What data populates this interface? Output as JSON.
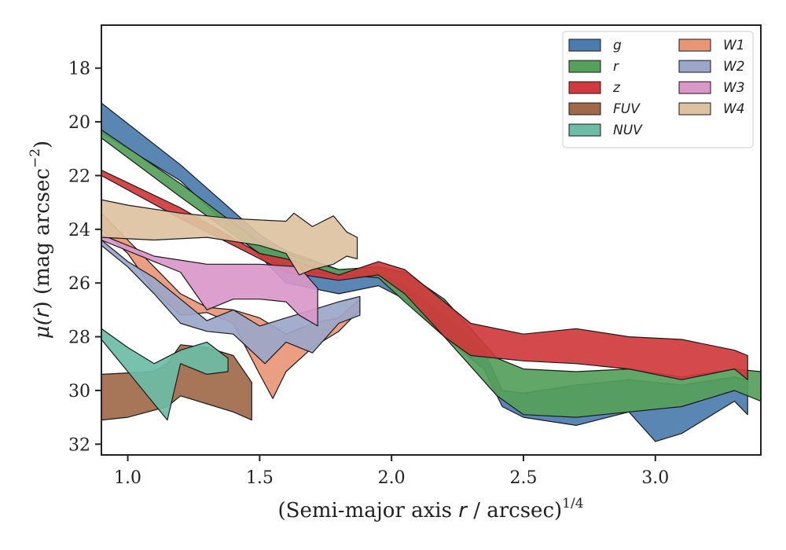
{
  "chart_data": {
    "type": "area",
    "xlabel": "(Semi-major axis r / arcsec)^1/4",
    "xlabel_parts": {
      "pre": "(Semi-major axis ",
      "var": "r",
      "post": " / arcsec)",
      "sup": "1/4"
    },
    "ylabel": "μ(r) (mag arcsec^-2)",
    "ylabel_parts": {
      "pre": "μ(",
      "var": "r",
      "mid": ") (mag arcsec",
      "sup": "−2",
      "post": ")"
    },
    "xlim": [
      0.9,
      3.4
    ],
    "ylim": [
      32.4,
      16.4
    ],
    "y_inverted": true,
    "xticks": [
      1.0,
      1.5,
      2.0,
      2.5,
      3.0
    ],
    "xtick_labels": [
      "1.0",
      "1.5",
      "2.0",
      "2.5",
      "3.0"
    ],
    "yticks": [
      18,
      20,
      22,
      24,
      26,
      28,
      30,
      32
    ],
    "ytick_labels": [
      "18",
      "20",
      "22",
      "24",
      "26",
      "28",
      "30",
      "32"
    ],
    "grid": false,
    "legend_location": "top-right",
    "legend_columns": 2,
    "series": [
      {
        "name": "g",
        "color": "#4c7cae",
        "upper": [
          [
            0.9,
            19.3
          ],
          [
            1.2,
            21.6
          ],
          [
            1.5,
            24.2
          ],
          [
            1.6,
            24.8
          ],
          [
            1.8,
            25.5
          ],
          [
            1.95,
            25.6
          ],
          [
            2.05,
            26.1
          ],
          [
            2.2,
            27.2
          ],
          [
            2.35,
            28.5
          ],
          [
            2.42,
            30.0
          ],
          [
            2.5,
            30.1
          ],
          [
            2.7,
            29.8
          ],
          [
            2.9,
            29.6
          ],
          [
            3.1,
            29.8
          ],
          [
            3.3,
            29.5
          ],
          [
            3.35,
            29.6
          ]
        ],
        "lower": [
          [
            3.35,
            30.9
          ],
          [
            3.3,
            30.4
          ],
          [
            3.1,
            31.6
          ],
          [
            3.0,
            31.9
          ],
          [
            2.9,
            30.8
          ],
          [
            2.7,
            31.3
          ],
          [
            2.5,
            31.0
          ],
          [
            2.42,
            30.6
          ],
          [
            2.35,
            29.2
          ],
          [
            2.2,
            28.0
          ],
          [
            2.05,
            26.6
          ],
          [
            1.95,
            26.1
          ],
          [
            1.8,
            26.4
          ],
          [
            1.6,
            26.0
          ],
          [
            1.5,
            25.0
          ],
          [
            1.2,
            22.2
          ],
          [
            0.9,
            20.4
          ]
        ]
      },
      {
        "name": "r",
        "color": "#55a05a",
        "upper": [
          [
            0.9,
            20.3
          ],
          [
            1.2,
            22.3
          ],
          [
            1.5,
            24.5
          ],
          [
            1.6,
            24.9
          ],
          [
            1.8,
            25.5
          ],
          [
            1.95,
            25.4
          ],
          [
            2.05,
            25.6
          ],
          [
            2.2,
            26.6
          ],
          [
            2.4,
            28.8
          ],
          [
            2.5,
            29.2
          ],
          [
            2.7,
            29.3
          ],
          [
            2.9,
            29.2
          ],
          [
            3.1,
            29.5
          ],
          [
            3.3,
            29.2
          ],
          [
            3.4,
            29.3
          ]
        ],
        "lower": [
          [
            3.4,
            30.4
          ],
          [
            3.3,
            30.0
          ],
          [
            3.1,
            30.6
          ],
          [
            2.9,
            30.8
          ],
          [
            2.7,
            31.0
          ],
          [
            2.5,
            30.9
          ],
          [
            2.4,
            30.2
          ],
          [
            2.2,
            28.0
          ],
          [
            2.05,
            26.7
          ],
          [
            1.95,
            25.8
          ],
          [
            1.8,
            25.7
          ],
          [
            1.6,
            25.5
          ],
          [
            1.5,
            24.9
          ],
          [
            1.2,
            22.8
          ],
          [
            0.9,
            20.6
          ]
        ]
      },
      {
        "name": "z",
        "color": "#d03a3c",
        "upper": [
          [
            0.9,
            21.8
          ],
          [
            1.2,
            23.2
          ],
          [
            1.5,
            24.9
          ],
          [
            1.6,
            25.1
          ],
          [
            1.8,
            25.7
          ],
          [
            1.95,
            25.2
          ],
          [
            2.05,
            25.5
          ],
          [
            2.2,
            26.7
          ],
          [
            2.3,
            27.5
          ],
          [
            2.5,
            27.9
          ],
          [
            2.7,
            27.7
          ],
          [
            2.9,
            28.0
          ],
          [
            3.1,
            28.1
          ],
          [
            3.3,
            28.5
          ],
          [
            3.35,
            28.7
          ]
        ],
        "lower": [
          [
            3.35,
            29.6
          ],
          [
            3.3,
            29.2
          ],
          [
            3.1,
            29.6
          ],
          [
            2.9,
            29.2
          ],
          [
            2.7,
            29.0
          ],
          [
            2.5,
            28.9
          ],
          [
            2.3,
            28.7
          ],
          [
            2.2,
            28.0
          ],
          [
            2.05,
            26.4
          ],
          [
            1.95,
            25.7
          ],
          [
            1.8,
            25.9
          ],
          [
            1.6,
            25.6
          ],
          [
            1.5,
            25.1
          ],
          [
            1.2,
            23.6
          ],
          [
            0.9,
            22.0
          ]
        ]
      },
      {
        "name": "FUV",
        "color": "#a0694a",
        "upper": [
          [
            0.9,
            29.4
          ],
          [
            1.1,
            29.3
          ],
          [
            1.15,
            29.0
          ],
          [
            1.2,
            28.3
          ],
          [
            1.3,
            28.4
          ],
          [
            1.4,
            28.7
          ],
          [
            1.47,
            29.7
          ]
        ],
        "lower": [
          [
            1.47,
            31.1
          ],
          [
            1.4,
            30.8
          ],
          [
            1.3,
            30.5
          ],
          [
            1.2,
            30.2
          ],
          [
            1.15,
            30.6
          ],
          [
            1.0,
            31.0
          ],
          [
            0.9,
            31.1
          ]
        ]
      },
      {
        "name": "NUV",
        "color": "#6dbca5",
        "upper": [
          [
            0.9,
            27.7
          ],
          [
            1.0,
            28.4
          ],
          [
            1.1,
            29.0
          ],
          [
            1.2,
            28.5
          ],
          [
            1.3,
            28.2
          ],
          [
            1.38,
            28.8
          ]
        ],
        "lower": [
          [
            1.38,
            29.3
          ],
          [
            1.3,
            29.4
          ],
          [
            1.2,
            29.0
          ],
          [
            1.15,
            31.1
          ],
          [
            1.0,
            29.3
          ],
          [
            0.9,
            28.1
          ]
        ]
      },
      {
        "name": "W1",
        "color": "#e99676",
        "upper": [
          [
            0.9,
            23.4
          ],
          [
            1.0,
            24.4
          ],
          [
            1.1,
            25.4
          ],
          [
            1.2,
            26.4
          ],
          [
            1.3,
            26.9
          ],
          [
            1.4,
            27.0
          ],
          [
            1.5,
            27.3
          ],
          [
            1.6,
            27.9
          ],
          [
            1.7,
            27.5
          ],
          [
            1.8,
            27.3
          ],
          [
            1.88,
            26.6
          ]
        ],
        "lower": [
          [
            1.88,
            27.0
          ],
          [
            1.8,
            27.8
          ],
          [
            1.7,
            28.4
          ],
          [
            1.6,
            29.3
          ],
          [
            1.55,
            30.3
          ],
          [
            1.5,
            29.4
          ],
          [
            1.4,
            27.5
          ],
          [
            1.3,
            27.1
          ],
          [
            1.2,
            27.2
          ],
          [
            1.1,
            26.3
          ],
          [
            1.0,
            24.9
          ],
          [
            0.9,
            24.0
          ]
        ]
      },
      {
        "name": "W2",
        "color": "#9ba7c9",
        "upper": [
          [
            0.9,
            24.4
          ],
          [
            1.0,
            25.2
          ],
          [
            1.1,
            25.8
          ],
          [
            1.2,
            26.6
          ],
          [
            1.3,
            27.4
          ],
          [
            1.4,
            27.0
          ],
          [
            1.5,
            27.6
          ],
          [
            1.6,
            27.3
          ],
          [
            1.7,
            27.0
          ],
          [
            1.8,
            26.7
          ],
          [
            1.88,
            26.5
          ]
        ],
        "lower": [
          [
            1.88,
            27.2
          ],
          [
            1.8,
            27.5
          ],
          [
            1.7,
            28.6
          ],
          [
            1.6,
            28.2
          ],
          [
            1.52,
            29.0
          ],
          [
            1.4,
            27.9
          ],
          [
            1.3,
            27.8
          ],
          [
            1.2,
            27.5
          ],
          [
            1.1,
            26.4
          ],
          [
            1.0,
            25.4
          ],
          [
            0.9,
            24.6
          ]
        ]
      },
      {
        "name": "W3",
        "color": "#da97c9",
        "upper": [
          [
            0.9,
            24.2
          ],
          [
            1.1,
            25.0
          ],
          [
            1.3,
            25.3
          ],
          [
            1.5,
            25.3
          ],
          [
            1.65,
            25.4
          ],
          [
            1.72,
            26.2
          ]
        ],
        "lower": [
          [
            1.72,
            27.6
          ],
          [
            1.65,
            27.2
          ],
          [
            1.6,
            26.7
          ],
          [
            1.5,
            26.6
          ],
          [
            1.4,
            26.6
          ],
          [
            1.3,
            27.0
          ],
          [
            1.2,
            25.6
          ],
          [
            1.1,
            25.2
          ],
          [
            0.9,
            24.4
          ]
        ]
      },
      {
        "name": "W4",
        "color": "#dcc2a0",
        "upper": [
          [
            0.9,
            22.9
          ],
          [
            1.0,
            23.1
          ],
          [
            1.2,
            23.4
          ],
          [
            1.4,
            23.6
          ],
          [
            1.6,
            23.7
          ],
          [
            1.63,
            23.4
          ],
          [
            1.7,
            23.9
          ],
          [
            1.78,
            23.5
          ],
          [
            1.83,
            24.1
          ],
          [
            1.87,
            24.3
          ]
        ],
        "lower": [
          [
            1.87,
            25.1
          ],
          [
            1.83,
            25.0
          ],
          [
            1.78,
            25.3
          ],
          [
            1.7,
            25.5
          ],
          [
            1.65,
            25.7
          ],
          [
            1.6,
            24.9
          ],
          [
            1.5,
            24.6
          ],
          [
            1.3,
            24.3
          ],
          [
            1.1,
            24.4
          ],
          [
            0.9,
            24.3
          ]
        ]
      }
    ]
  }
}
